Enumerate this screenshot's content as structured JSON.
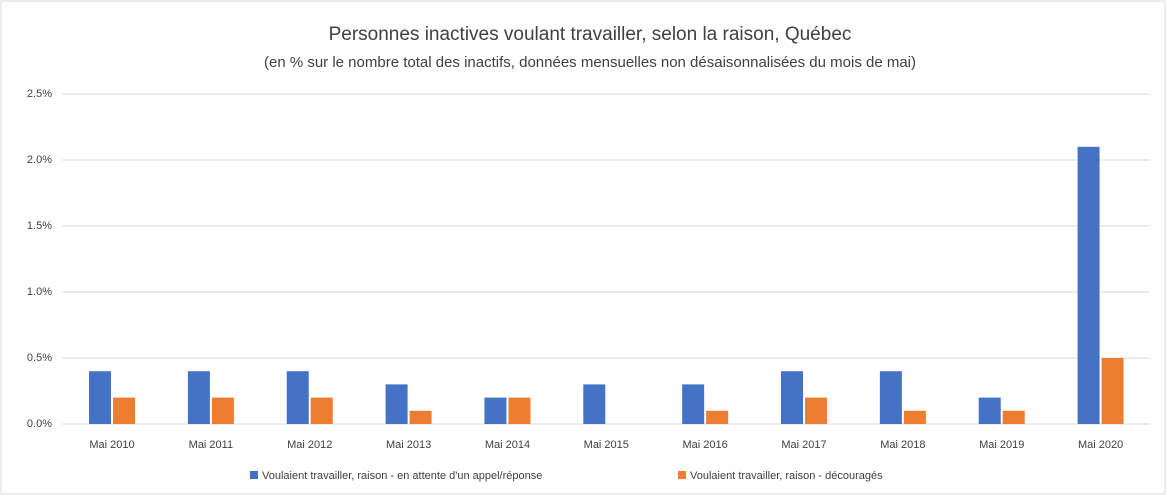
{
  "chart_data": {
    "type": "bar",
    "title": "Personnes inactives voulant travailler, selon la raison, Québec",
    "subtitle": "(en % sur le nombre total des inactifs, données mensuelles non désaisonnalisées du mois de mai)",
    "categories": [
      "Mai 2010",
      "Mai 2011",
      "Mai 2012",
      "Mai 2013",
      "Mai 2014",
      "Mai 2015",
      "Mai 2016",
      "Mai 2017",
      "Mai 2018",
      "Mai 2019",
      "Mai 2020"
    ],
    "series": [
      {
        "name": "Voulaient travailler, raison - en attente d'un appel/réponse",
        "color": "#4472c4",
        "values": [
          0.4,
          0.4,
          0.4,
          0.3,
          0.2,
          0.3,
          0.3,
          0.4,
          0.4,
          0.2,
          2.1
        ]
      },
      {
        "name": "Voulaient travailler, raison - découragés",
        "color": "#ed7d31",
        "values": [
          0.2,
          0.2,
          0.2,
          0.1,
          0.2,
          0,
          0.1,
          0.2,
          0.1,
          0.1,
          0.5
        ]
      }
    ],
    "ylim": [
      0,
      2.5
    ],
    "yticks": [
      {
        "value": 0,
        "label": "0.0%"
      },
      {
        "value": 0.5,
        "label": "0.5%"
      },
      {
        "value": 1,
        "label": "1.0%"
      },
      {
        "value": 1.5,
        "label": "1.5%"
      },
      {
        "value": 2,
        "label": "2.0%"
      },
      {
        "value": 2.5,
        "label": "2.5%"
      }
    ],
    "grid": true,
    "legend": "bottom"
  }
}
